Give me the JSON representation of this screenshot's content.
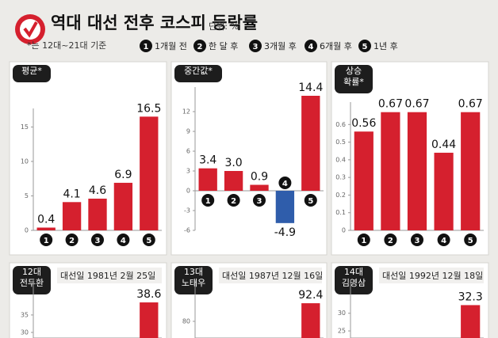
{
  "header": {
    "title": "역대 대선 전후 코스피 등락률",
    "unit": "단위: %",
    "note": "*는 12대~21대 기준",
    "legend": [
      {
        "num": "1",
        "label": "1개월 전"
      },
      {
        "num": "2",
        "label": "한 달 후"
      },
      {
        "num": "3",
        "label": "3개월 후"
      },
      {
        "num": "4",
        "label": "6개월 후"
      },
      {
        "num": "5",
        "label": "1년 후"
      }
    ]
  },
  "chart_data": [
    {
      "type": "bar",
      "title": [
        "평균*"
      ],
      "categories": [
        "1",
        "2",
        "3",
        "4",
        "5"
      ],
      "values": [
        0.4,
        4.1,
        4.6,
        6.9,
        16.5
      ],
      "color": "#d5202e",
      "negative_color": "#2f5dab",
      "ylim": [
        0,
        17
      ],
      "yticks": [
        0,
        5,
        10,
        15
      ]
    },
    {
      "type": "bar",
      "title": [
        "중간값*"
      ],
      "categories": [
        "1",
        "2",
        "3",
        "4",
        "5"
      ],
      "values": [
        3.4,
        3.0,
        0.9,
        -4.9,
        14.4
      ],
      "value_labels": [
        "3.4",
        "3.0",
        "0.9",
        "-4.9",
        "14.4"
      ],
      "color": "#d5202e",
      "negative_color": "#2f5dab",
      "ylim": [
        -6,
        15
      ],
      "yticks": [
        -6,
        -3,
        0,
        3,
        6,
        9,
        12
      ]
    },
    {
      "type": "bar",
      "title": [
        "상승",
        "확률*"
      ],
      "categories": [
        "1",
        "2",
        "3",
        "4",
        "5"
      ],
      "values": [
        0.56,
        0.67,
        0.67,
        0.44,
        0.67
      ],
      "color": "#d5202e",
      "negative_color": "#2f5dab",
      "ylim": [
        0,
        0.7
      ],
      "yticks": [
        0,
        0.1,
        0.2,
        0.3,
        0.4,
        0.5,
        0.6
      ]
    },
    {
      "type": "bar",
      "title": [
        "12대",
        "전두환"
      ],
      "subtitle": "대선일 1981년 2월 25일",
      "values": [
        null,
        null,
        null,
        null,
        38.6
      ],
      "color": "#d5202e",
      "negative_color": "#2f5dab",
      "ylim": [
        28.4,
        43.6
      ],
      "yticks": [
        30,
        35
      ]
    },
    {
      "type": "bar",
      "title": [
        "13대",
        "노태우"
      ],
      "subtitle": "대선일 1987년 12월 16일",
      "values": [
        null,
        null,
        null,
        null,
        92.4
      ],
      "color": "#d5202e",
      "negative_color": "#2f5dab",
      "ylim": [
        68.6,
        104.9
      ],
      "yticks": [
        80
      ]
    },
    {
      "type": "bar",
      "title": [
        "14대",
        "김영삼"
      ],
      "subtitle": "대선일 1992년 12월 18일",
      "values": [
        null,
        null,
        null,
        null,
        32.3
      ],
      "color": "#d5202e",
      "negative_color": "#2f5dab",
      "ylim": [
        23,
        38
      ],
      "yticks": [
        25,
        30
      ]
    }
  ]
}
